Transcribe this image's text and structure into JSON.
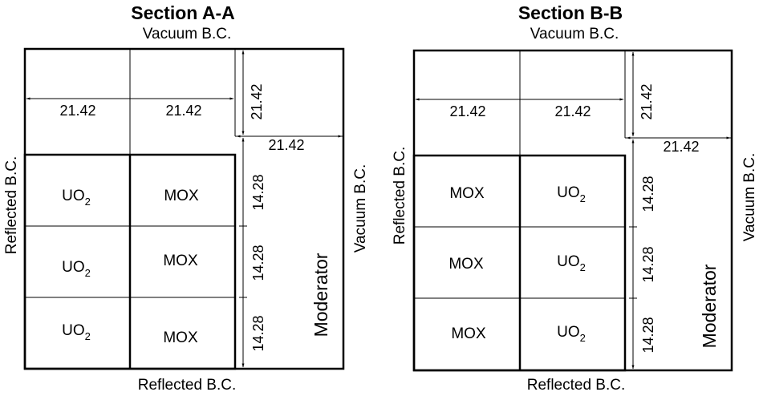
{
  "sections": [
    {
      "title": "Section A-A",
      "top_bc": "Vacuum B.C.",
      "bottom_bc": "Reflected B.C.",
      "left_bc": "Reflected B.C.",
      "right_bc": "Vacuum B.C.",
      "moderator": "Moderator",
      "dims": {
        "top_width_1": "21.42",
        "top_width_2": "21.42",
        "top_height": "21.42",
        "moderator_width": "21.42",
        "row_height_1": "14.28",
        "row_height_2": "14.28",
        "row_height_3": "14.28"
      },
      "cells": [
        [
          {
            "main": "UO",
            "sub": "2"
          },
          {
            "main": "MOX",
            "sub": ""
          }
        ],
        [
          {
            "main": "UO",
            "sub": "2"
          },
          {
            "main": "MOX",
            "sub": ""
          }
        ],
        [
          {
            "main": "UO",
            "sub": "2"
          },
          {
            "main": "MOX",
            "sub": ""
          }
        ]
      ]
    },
    {
      "title": "Section B-B",
      "top_bc": "Vacuum B.C.",
      "bottom_bc": "Reflected B.C.",
      "left_bc": "Reflected B.C.",
      "right_bc": "Vacuum B.C.",
      "moderator": "Moderator",
      "dims": {
        "top_width_1": "21.42",
        "top_width_2": "21.42",
        "top_height": "21.42",
        "moderator_width": "21.42",
        "row_height_1": "14.28",
        "row_height_2": "14.28",
        "row_height_3": "14.28"
      },
      "cells": [
        [
          {
            "main": "MOX",
            "sub": ""
          },
          {
            "main": "UO",
            "sub": "2"
          }
        ],
        [
          {
            "main": "MOX",
            "sub": ""
          },
          {
            "main": "UO",
            "sub": "2"
          }
        ],
        [
          {
            "main": "MOX",
            "sub": ""
          },
          {
            "main": "UO",
            "sub": "2"
          }
        ]
      ]
    }
  ]
}
